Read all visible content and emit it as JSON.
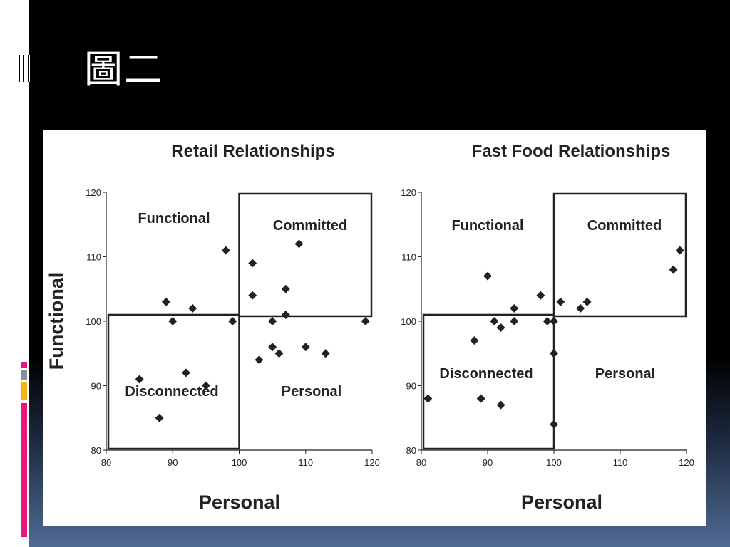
{
  "slide": {
    "title": "圖二"
  },
  "colors": {
    "background": "#000000",
    "panel": "#ffffff",
    "accent_pink": "#e8177a",
    "accent_gray": "#8a8f99",
    "accent_yellow": "#f3b21b"
  },
  "chart_data": [
    {
      "type": "scatter",
      "title": "Retail Relationships",
      "xlabel": "Personal",
      "ylabel": "Functional",
      "xlim": [
        80,
        120
      ],
      "ylim": [
        80,
        120
      ],
      "xticks": [
        "80",
        "90",
        "100",
        "110",
        "120"
      ],
      "yticks": [
        "80",
        "90",
        "100",
        "110",
        "120"
      ],
      "grid": false,
      "quadrants": [
        "Functional",
        "Committed",
        "Disconnected",
        "Personal"
      ],
      "points": [
        {
          "x": 85,
          "y": 91
        },
        {
          "x": 88,
          "y": 85
        },
        {
          "x": 89,
          "y": 103
        },
        {
          "x": 90,
          "y": 100
        },
        {
          "x": 92,
          "y": 92
        },
        {
          "x": 93,
          "y": 102
        },
        {
          "x": 95,
          "y": 90
        },
        {
          "x": 98,
          "y": 111
        },
        {
          "x": 99,
          "y": 100
        },
        {
          "x": 102,
          "y": 109
        },
        {
          "x": 102,
          "y": 104
        },
        {
          "x": 103,
          "y": 94
        },
        {
          "x": 105,
          "y": 100
        },
        {
          "x": 105,
          "y": 96
        },
        {
          "x": 106,
          "y": 95
        },
        {
          "x": 107,
          "y": 105
        },
        {
          "x": 107,
          "y": 101
        },
        {
          "x": 109,
          "y": 112
        },
        {
          "x": 110,
          "y": 96
        },
        {
          "x": 113,
          "y": 95
        },
        {
          "x": 119,
          "y": 100
        }
      ]
    },
    {
      "type": "scatter",
      "title": "Fast Food Relationships",
      "xlabel": "Personal",
      "ylabel": "",
      "xlim": [
        80,
        120
      ],
      "ylim": [
        80,
        120
      ],
      "xticks": [
        "80",
        "90",
        "100",
        "110",
        "120"
      ],
      "yticks": [
        "80",
        "90",
        "100",
        "110",
        "120"
      ],
      "grid": false,
      "quadrants": [
        "Functional",
        "Committed",
        "Disconnected",
        "Personal"
      ],
      "points": [
        {
          "x": 81,
          "y": 88
        },
        {
          "x": 88,
          "y": 97
        },
        {
          "x": 89,
          "y": 88
        },
        {
          "x": 90,
          "y": 107
        },
        {
          "x": 91,
          "y": 100
        },
        {
          "x": 92,
          "y": 99
        },
        {
          "x": 92,
          "y": 87
        },
        {
          "x": 94,
          "y": 102
        },
        {
          "x": 94,
          "y": 100
        },
        {
          "x": 98,
          "y": 104
        },
        {
          "x": 99,
          "y": 100
        },
        {
          "x": 100,
          "y": 100
        },
        {
          "x": 100,
          "y": 95
        },
        {
          "x": 100,
          "y": 84
        },
        {
          "x": 101,
          "y": 103
        },
        {
          "x": 104,
          "y": 102
        },
        {
          "x": 105,
          "y": 103
        },
        {
          "x": 118,
          "y": 108
        },
        {
          "x": 119,
          "y": 111
        }
      ]
    }
  ]
}
